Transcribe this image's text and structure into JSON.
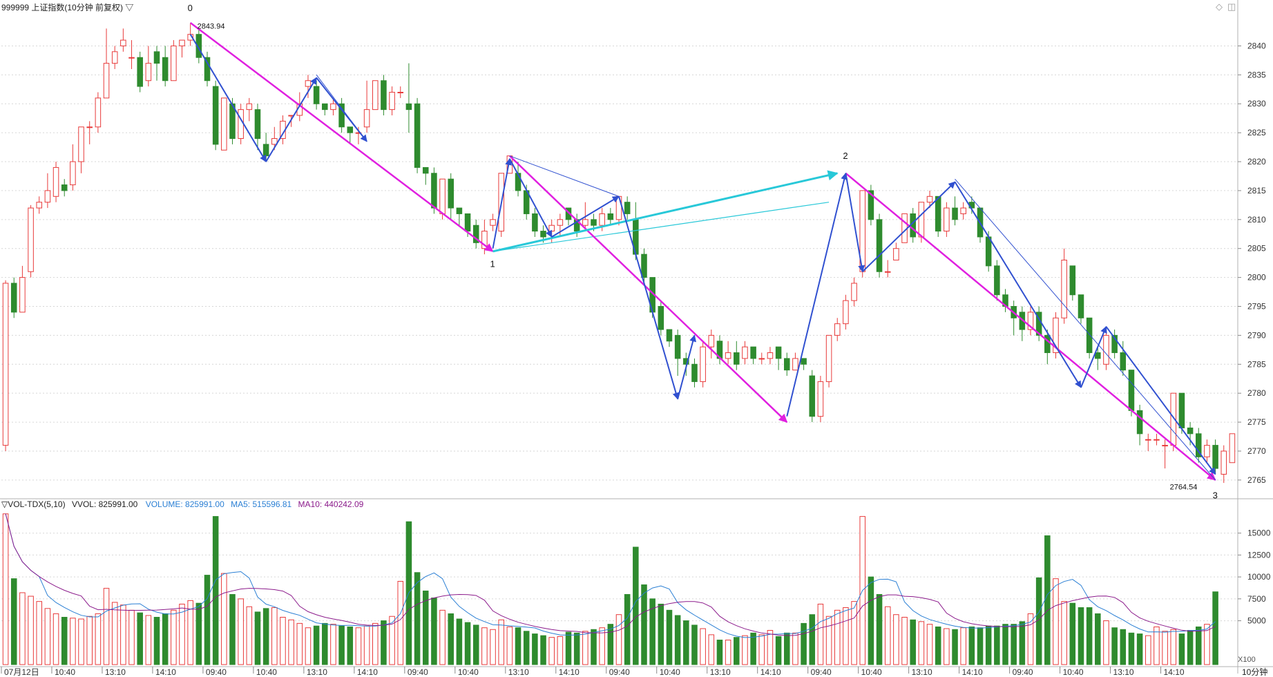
{
  "title": "999999 上证指数(10分钟 前复权) ▽",
  "window_icons": [
    "◇",
    "◫"
  ],
  "price_axis": {
    "ticks": [
      2840,
      2835,
      2830,
      2825,
      2820,
      2815,
      2810,
      2805,
      2800,
      2795,
      2790,
      2785,
      2780,
      2775,
      2770,
      2765
    ],
    "range": [
      2762.0,
      2846.5
    ]
  },
  "volume_axis": {
    "ticks": [
      15000,
      12500,
      10000,
      7500,
      5000
    ],
    "range": [
      0,
      17500
    ],
    "unit": "X100"
  },
  "time_axis": {
    "labels": [
      "07月12日",
      "10:40",
      "13:10",
      "14:10",
      "09:40",
      "10:40",
      "13:10",
      "14:10",
      "09:40",
      "10:40",
      "13:10",
      "14:10",
      "09:40",
      "10:40",
      "13:10",
      "14:10",
      "09:40",
      "10:40",
      "13:10",
      "14:10",
      "09:40",
      "10:40",
      "13:10",
      "14:10"
    ],
    "period_label": "10分钟"
  },
  "volume_panel": {
    "header_prefix": "▽VOL-TDX(5,10)",
    "vvol": "VVOL: 825991.00",
    "volume": "VOLUME: 825991.00",
    "ma5": "MA5: 515596.81",
    "ma10": "MA10: 440242.09"
  },
  "annotations": {
    "wave_labels": [
      "0",
      "1",
      "2",
      "3"
    ],
    "high_price": "2843.94",
    "low_price": "2764.54"
  },
  "colors": {
    "up": "#e83a3a",
    "down": "#2e8b2e",
    "ma5": "#2a7fd4",
    "ma10": "#8b1a8b",
    "zigzag_major": "#e020e0",
    "zigzag_minor": "#3050d0",
    "link": "#28c8d8"
  },
  "chart_data": {
    "type": "candlestick",
    "candle_count": 144,
    "candles": [
      [
        2771,
        2799,
        2770,
        2799.5
      ],
      [
        2799,
        2794,
        2793,
        2800
      ],
      [
        2794,
        2800,
        2794,
        2802
      ],
      [
        2801,
        2812,
        2800,
        2812.5
      ],
      [
        2812,
        2813,
        2811,
        2814
      ],
      [
        2813,
        2815,
        2812,
        2818
      ],
      [
        2814,
        2819,
        2813,
        2820
      ],
      [
        2816,
        2815,
        2814,
        2817
      ],
      [
        2816,
        2820,
        2815,
        2823
      ],
      [
        2820,
        2826,
        2818,
        2826
      ],
      [
        2826,
        2826,
        2823,
        2827
      ],
      [
        2826,
        2831,
        2825,
        2832
      ],
      [
        2831,
        2837,
        2831,
        2843
      ],
      [
        2837,
        2839,
        2836,
        2840
      ],
      [
        2840,
        2841,
        2839,
        2843
      ],
      [
        2838,
        2838,
        2836,
        2841
      ],
      [
        2838,
        2833,
        2832,
        2839
      ],
      [
        2834,
        2837,
        2833,
        2840
      ],
      [
        2839,
        2837,
        2834,
        2840
      ],
      [
        2838,
        2834,
        2833,
        2840
      ],
      [
        2834,
        2840,
        2834,
        2841
      ],
      [
        2840,
        2841,
        2838,
        2841
      ],
      [
        2841,
        2842,
        2840,
        2844
      ],
      [
        2842,
        2838,
        2837,
        2843
      ],
      [
        2838,
        2834,
        2833,
        2839
      ],
      [
        2833,
        2823,
        2822,
        2834
      ],
      [
        2822,
        2831,
        2822,
        2831
      ],
      [
        2830,
        2824,
        2823,
        2831
      ],
      [
        2824,
        2829,
        2823,
        2830
      ],
      [
        2829,
        2830,
        2827,
        2831
      ],
      [
        2829,
        2824,
        2822,
        2830
      ],
      [
        2823,
        2821,
        2820,
        2825
      ],
      [
        2823,
        2824,
        2822,
        2826
      ],
      [
        2824,
        2827,
        2823,
        2828
      ],
      [
        2828,
        2828,
        2826,
        2828
      ],
      [
        2828,
        2830,
        2827,
        2832
      ],
      [
        2833,
        2834,
        2831,
        2835
      ],
      [
        2833,
        2830,
        2829,
        2834
      ],
      [
        2830,
        2829,
        2828,
        2830
      ],
      [
        2829,
        2830,
        2828,
        2831
      ],
      [
        2830,
        2826,
        2825,
        2831
      ],
      [
        2826,
        2825,
        2823,
        2826
      ],
      [
        2825,
        2825,
        2823,
        2826
      ],
      [
        2826,
        2829,
        2825,
        2834
      ],
      [
        2829,
        2834,
        2829,
        2834
      ],
      [
        2834,
        2829,
        2828,
        2835
      ],
      [
        2829,
        2832,
        2828,
        2833
      ],
      [
        2832,
        2832,
        2831,
        2833
      ],
      [
        2830,
        2829,
        2825,
        2837
      ],
      [
        2830,
        2819,
        2818,
        2831
      ],
      [
        2819,
        2818,
        2816,
        2819
      ],
      [
        2818,
        2812,
        2811,
        2819
      ],
      [
        2811,
        2817,
        2810,
        2817
      ],
      [
        2817,
        2812,
        2810,
        2818
      ],
      [
        2812,
        2811,
        2809,
        2812
      ],
      [
        2811,
        2808,
        2807,
        2811
      ],
      [
        2809,
        2806,
        2805,
        2810
      ],
      [
        2805,
        2808,
        2804,
        2810
      ],
      [
        2809,
        2810,
        2808,
        2811
      ],
      [
        2808,
        2818,
        2807,
        2818
      ],
      [
        2818,
        2821,
        2818,
        2821
      ],
      [
        2818,
        2815,
        2814,
        2820
      ],
      [
        2815,
        2811,
        2810,
        2816
      ],
      [
        2811,
        2808,
        2807,
        2812
      ],
      [
        2808,
        2807,
        2806,
        2809
      ],
      [
        2808,
        2809,
        2806,
        2810
      ],
      [
        2809,
        2810,
        2807,
        2811
      ],
      [
        2812,
        2810,
        2809,
        2812
      ],
      [
        2810,
        2808,
        2807,
        2811
      ],
      [
        2809,
        2810,
        2808,
        2813
      ],
      [
        2810,
        2809,
        2808,
        2811
      ],
      [
        2809,
        2811,
        2808,
        2812
      ],
      [
        2811,
        2810,
        2809,
        2812
      ],
      [
        2810,
        2814,
        2809,
        2814
      ],
      [
        2813,
        2811,
        2810,
        2814
      ],
      [
        2810,
        2804,
        2803,
        2813
      ],
      [
        2804,
        2800,
        2799,
        2805
      ],
      [
        2800,
        2794,
        2793,
        2800
      ],
      [
        2795,
        2791,
        2790,
        2796
      ],
      [
        2791,
        2789,
        2788,
        2791
      ],
      [
        2790,
        2786,
        2783,
        2791
      ],
      [
        2786,
        2785,
        2783,
        2787
      ],
      [
        2785,
        2782,
        2781,
        2786
      ],
      [
        2782,
        2788,
        2781,
        2789
      ],
      [
        2788,
        2790,
        2786,
        2791
      ],
      [
        2789,
        2786,
        2785,
        2790
      ],
      [
        2786,
        2787,
        2785,
        2789
      ],
      [
        2787,
        2785,
        2784,
        2789
      ],
      [
        2786,
        2788,
        2785,
        2789
      ],
      [
        2788,
        2786,
        2785,
        2788
      ],
      [
        2786,
        2786,
        2785,
        2787
      ],
      [
        2786,
        2787,
        2785,
        2788
      ],
      [
        2788,
        2786,
        2784,
        2788
      ],
      [
        2786,
        2784,
        2783,
        2787
      ],
      [
        2784,
        2786,
        2784,
        2787
      ],
      [
        2786,
        2785,
        2784,
        2786
      ],
      [
        2783,
        2776,
        2775,
        2784
      ],
      [
        2776,
        2782,
        2775,
        2783
      ],
      [
        2782,
        2790,
        2781,
        2790
      ],
      [
        2790,
        2792,
        2789,
        2793
      ],
      [
        2792,
        2796,
        2791,
        2797
      ],
      [
        2796,
        2799,
        2795,
        2800
      ],
      [
        2801,
        2815,
        2800,
        2815
      ],
      [
        2815,
        2810,
        2809,
        2816
      ],
      [
        2810,
        2801,
        2800,
        2811
      ],
      [
        2801,
        2801,
        2800,
        2803
      ],
      [
        2803,
        2805,
        2803,
        2806
      ],
      [
        2806,
        2811,
        2806,
        2811
      ],
      [
        2811,
        2807,
        2806,
        2812
      ],
      [
        2807,
        2813,
        2806,
        2813
      ],
      [
        2813,
        2814,
        2812,
        2815
      ],
      [
        2814,
        2808,
        2807,
        2814
      ],
      [
        2808,
        2812,
        2807,
        2813
      ],
      [
        2812,
        2810,
        2809,
        2814
      ],
      [
        2811,
        2812,
        2810,
        2813
      ],
      [
        2813,
        2812,
        2811,
        2814
      ],
      [
        2812,
        2807,
        2806,
        2812
      ],
      [
        2807,
        2802,
        2801,
        2808
      ],
      [
        2802,
        2797,
        2796,
        2803
      ],
      [
        2797,
        2795,
        2794,
        2798
      ],
      [
        2795,
        2793,
        2790,
        2796
      ],
      [
        2794,
        2791,
        2789,
        2795
      ],
      [
        2791,
        2794,
        2790,
        2795
      ],
      [
        2794,
        2790,
        2789,
        2795
      ],
      [
        2790,
        2787,
        2785,
        2791
      ],
      [
        2787,
        2793,
        2786,
        2794
      ],
      [
        2793,
        2803,
        2792,
        2805
      ],
      [
        2802,
        2797,
        2796,
        2802
      ],
      [
        2797,
        2793,
        2792,
        2797
      ],
      [
        2793,
        2787,
        2786,
        2793
      ],
      [
        2787,
        2786,
        2784,
        2788
      ],
      [
        2785,
        2790,
        2784,
        2791
      ],
      [
        2790,
        2787,
        2786,
        2791
      ],
      [
        2787,
        2784,
        2783,
        2789
      ],
      [
        2784,
        2777,
        2776,
        2784
      ],
      [
        2777,
        2773,
        2771,
        2778
      ],
      [
        2772,
        2772,
        2770,
        2773
      ],
      [
        2772,
        2772,
        2771,
        2773
      ],
      [
        2771,
        2771,
        2767,
        2772
      ],
      [
        2771,
        2780,
        2770,
        2780
      ],
      [
        2780,
        2774,
        2773,
        2780
      ],
      [
        2774,
        2773,
        2771,
        2775
      ],
      [
        2773,
        2769,
        2768,
        2774
      ],
      [
        2769,
        2771,
        2768,
        2772
      ],
      [
        2771,
        2767,
        2766,
        2772
      ],
      [
        2766,
        2770,
        2764.5,
        2771
      ],
      [
        2768,
        2773,
        2768,
        2773
      ]
    ],
    "volume": [
      17200,
      9800,
      8200,
      7800,
      7200,
      6400,
      5800,
      5400,
      5300,
      5200,
      5500,
      5800,
      8700,
      7100,
      6800,
      6200,
      5900,
      5600,
      5400,
      5800,
      6200,
      6900,
      7300,
      7000,
      10200,
      16900,
      10400,
      8000,
      7500,
      6600,
      6000,
      6400,
      6500,
      5400,
      5100,
      4700,
      4200,
      4400,
      4700,
      4600,
      4400,
      4300,
      4200,
      4400,
      4700,
      5000,
      5500,
      9500,
      16300,
      10500,
      8400,
      7600,
      6200,
      5800,
      5200,
      4800,
      4500,
      4200,
      4000,
      5100,
      4300,
      4200,
      3800,
      3500,
      3300,
      3100,
      3200,
      3700,
      3600,
      3800,
      4000,
      4200,
      4600,
      5700,
      8000,
      13400,
      9100,
      7500,
      6900,
      6200,
      5600,
      5000,
      4500,
      4100,
      3400,
      2800,
      2800,
      3100,
      3300,
      3600,
      3400,
      3900,
      3200,
      3600,
      3600,
      4700,
      5700,
      6900,
      5500,
      6200,
      6500,
      7200,
      16900,
      10000,
      8000,
      6600,
      5700,
      5400,
      5100,
      4900,
      4600,
      4300,
      4100,
      4000,
      4200,
      4300,
      4200,
      4400,
      4400,
      4600,
      4600,
      4900,
      5800,
      9900,
      14700,
      9800,
      7200,
      7000,
      6500,
      6500,
      5800,
      5000,
      4200,
      4000,
      3600,
      3500,
      3300,
      4300,
      3800,
      4000,
      3500,
      3900,
      4300,
      4600,
      8300
    ],
    "ma5_line": "blue moving-average line of volume (MA5)",
    "ma10_line": "purple moving-average line of volume (MA10)"
  }
}
